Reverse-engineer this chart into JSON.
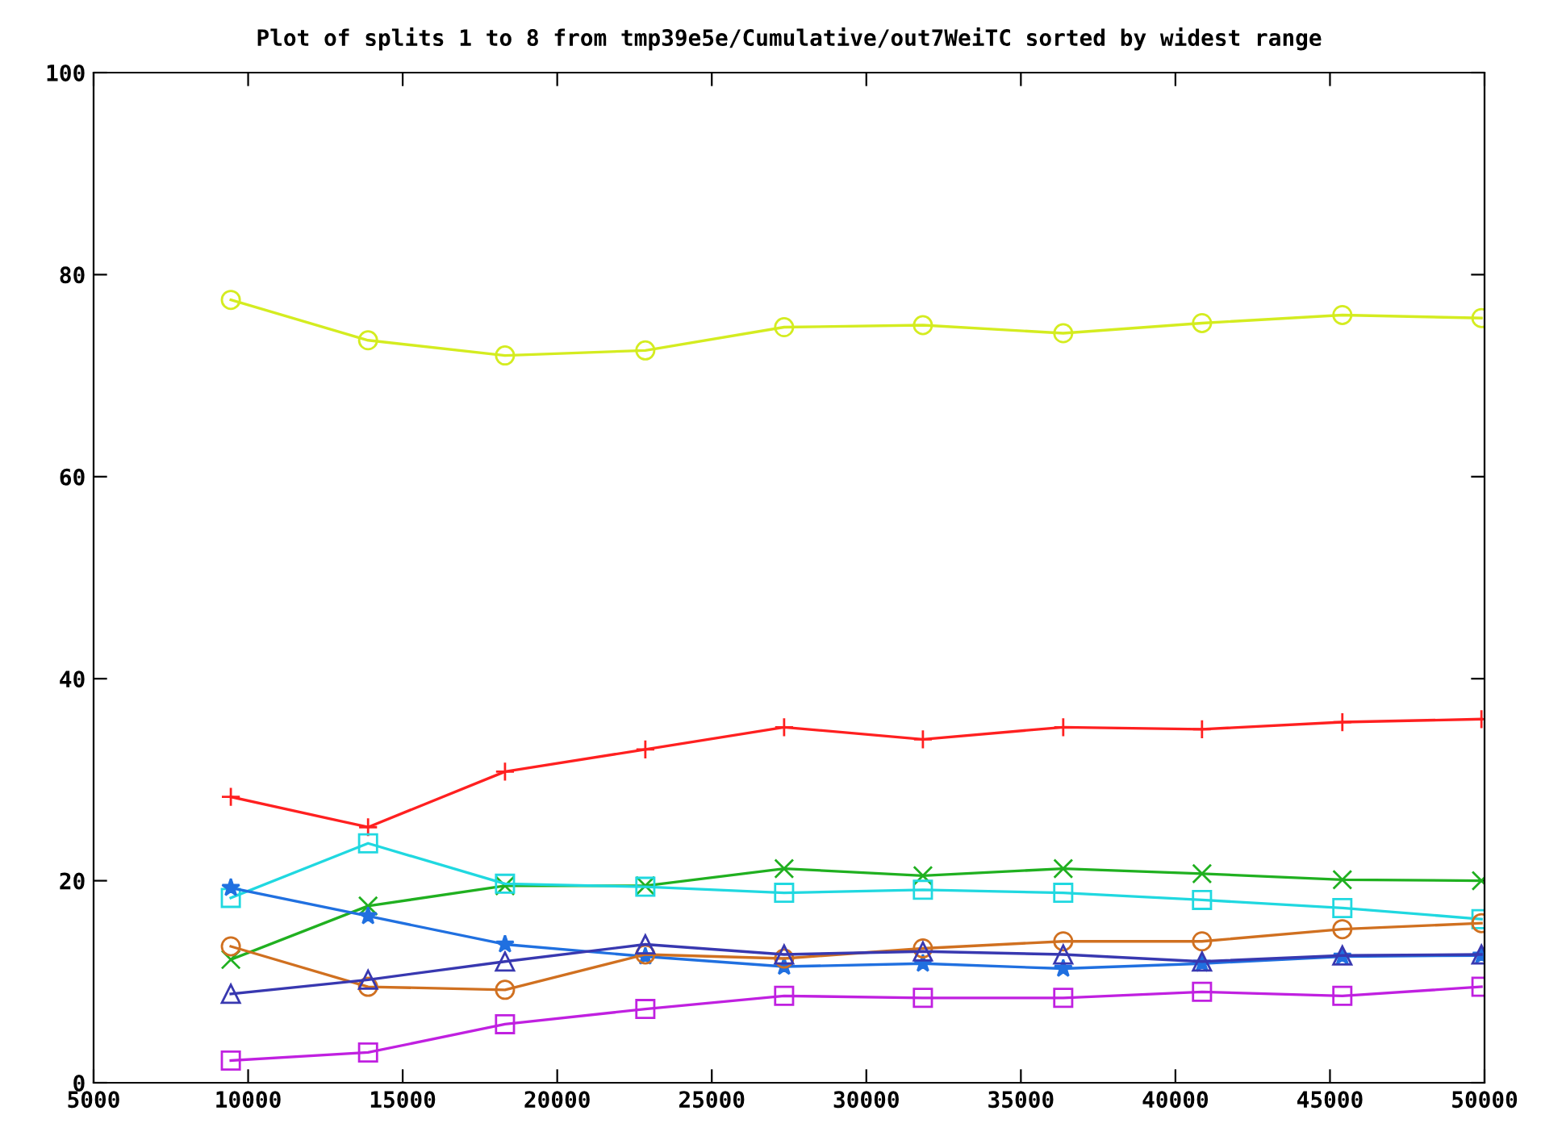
{
  "chart_data": {
    "type": "line",
    "title": "Plot of splits 1 to 8 from tmp39e5e/Cumulative/out7WeiTC sorted by widest range",
    "x": [
      9440,
      13880,
      18310,
      22850,
      27340,
      31830,
      36370,
      40860,
      45400,
      49900
    ],
    "xlim": [
      5000,
      50000
    ],
    "xticks": [
      5000,
      10000,
      15000,
      20000,
      25000,
      30000,
      35000,
      40000,
      45000,
      50000
    ],
    "ylim": [
      0,
      100
    ],
    "yticks": [
      0,
      20,
      40,
      60,
      80,
      100
    ],
    "grid": false,
    "legend": false,
    "line_style": "solid",
    "series": [
      {
        "color": "#d4ec20",
        "marker": "circle",
        "values": [
          77.5,
          73.5,
          72,
          72.5,
          74.8,
          75,
          74.2,
          75.2,
          76,
          75.7
        ]
      },
      {
        "color": "#ff2020",
        "marker": "cross",
        "values": [
          28.3,
          25.3,
          30.8,
          33,
          35.2,
          34,
          35.2,
          35,
          35.7,
          36
        ]
      },
      {
        "color": "#20b020",
        "marker": "x",
        "values": [
          12.2,
          17.5,
          19.5,
          19.5,
          21.2,
          20.5,
          21.2,
          20.7,
          20.1,
          20
        ]
      },
      {
        "color": "#20d8e0",
        "marker": "square",
        "values": [
          18.3,
          23.7,
          19.7,
          19.4,
          18.8,
          19.1,
          18.8,
          18.1,
          17.3,
          16.2
        ]
      },
      {
        "color": "#2070e0",
        "marker": "star",
        "values": [
          19.3,
          16.5,
          13.7,
          12.5,
          11.5,
          11.8,
          11.3,
          11.8,
          12.5,
          12.6
        ]
      },
      {
        "color": "#d07020",
        "marker": "circle",
        "values": [
          13.5,
          9.5,
          9.2,
          12.7,
          12.3,
          13.3,
          14,
          14,
          15.2,
          15.8
        ]
      },
      {
        "color": "#3838b0",
        "marker": "triangle",
        "values": [
          8.8,
          10.2,
          12,
          13.7,
          12.7,
          13,
          12.7,
          12,
          12.6,
          12.7
        ]
      },
      {
        "color": "#c020e0",
        "marker": "square",
        "values": [
          2.2,
          3,
          5.8,
          7.3,
          8.6,
          8.4,
          8.4,
          9,
          8.6,
          9.5
        ]
      }
    ]
  }
}
